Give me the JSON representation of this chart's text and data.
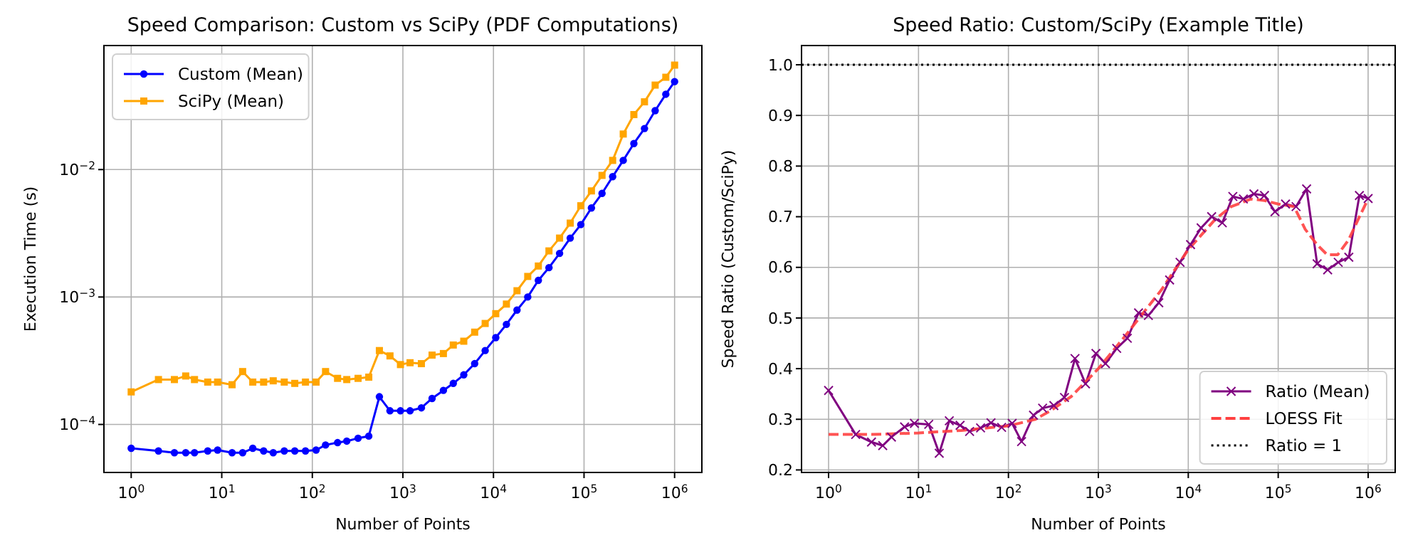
{
  "chart_data": [
    {
      "type": "line",
      "title": "Speed Comparison: Custom vs SciPy (PDF Computations)",
      "xlabel": "Number of Points",
      "ylabel": "Execution Time (s)",
      "x": [
        1,
        2,
        3,
        4,
        5,
        7,
        9,
        13,
        17,
        22,
        29,
        37,
        49,
        64,
        84,
        110,
        140,
        190,
        240,
        320,
        420,
        550,
        720,
        940,
        1200,
        1600,
        2100,
        2800,
        3600,
        4700,
        6200,
        8100,
        10600,
        13900,
        18200,
        23900,
        31300,
        41000,
        53700,
        70400,
        92100,
        120700,
        158000,
        207000,
        271000,
        355000,
        465000,
        610000,
        800000,
        1000000
      ],
      "series": [
        {
          "name": "Custom (Mean)",
          "color": "#0000ff",
          "marker": "circle",
          "values": [
            6.5e-05,
            6.2e-05,
            6e-05,
            6e-05,
            6e-05,
            6.2e-05,
            6.3e-05,
            6e-05,
            6e-05,
            6.5e-05,
            6.2e-05,
            6e-05,
            6.2e-05,
            6.2e-05,
            6.2e-05,
            6.3e-05,
            6.9e-05,
            7.2e-05,
            7.4e-05,
            7.8e-05,
            8.1e-05,
            0.000165,
            0.000128,
            0.000128,
            0.000128,
            0.000135,
            0.00016,
            0.000185,
            0.00021,
            0.000245,
            0.0003,
            0.00038,
            0.00048,
            0.00061,
            0.00079,
            0.001,
            0.00135,
            0.0017,
            0.0022,
            0.0029,
            0.0037,
            0.005,
            0.0065,
            0.0088,
            0.0118,
            0.016,
            0.021,
            0.029,
            0.039,
            0.049
          ]
        },
        {
          "name": "SciPy (Mean)",
          "color": "#ffa500",
          "marker": "square",
          "values": [
            0.00018,
            0.000225,
            0.000225,
            0.00024,
            0.000225,
            0.000215,
            0.000215,
            0.000205,
            0.00026,
            0.000215,
            0.000215,
            0.00022,
            0.000215,
            0.00021,
            0.000215,
            0.000215,
            0.00026,
            0.00023,
            0.000225,
            0.00023,
            0.000235,
            0.00038,
            0.000345,
            0.000295,
            0.000305,
            0.0003,
            0.00035,
            0.00036,
            0.00042,
            0.00045,
            0.00053,
            0.00062,
            0.00074,
            0.00088,
            0.00112,
            0.00145,
            0.00175,
            0.0023,
            0.0029,
            0.0038,
            0.0052,
            0.0068,
            0.009,
            0.0118,
            0.019,
            0.027,
            0.034,
            0.046,
            0.053,
            0.066
          ]
        }
      ],
      "log": "xy",
      "xlim": [
        0.5,
        2000000
      ],
      "ylim": [
        4.2e-05,
        0.094
      ],
      "xticks": [
        {
          "value": 1,
          "label": "10$^{0}$"
        },
        {
          "value": 10,
          "label": "10$^{1}$"
        },
        {
          "value": 100,
          "label": "10$^{2}$"
        },
        {
          "value": 1000,
          "label": "10$^{3}$"
        },
        {
          "value": 10000,
          "label": "10$^{4}$"
        },
        {
          "value": 100000,
          "label": "10$^{5}$"
        },
        {
          "value": 1000000,
          "label": "10$^{6}$"
        }
      ],
      "yticks": [
        {
          "value": 0.0001,
          "label": "10$^{−4}$"
        },
        {
          "value": 0.001,
          "label": "10$^{−3}$"
        },
        {
          "value": 0.01,
          "label": "10$^{−2}$"
        }
      ],
      "grid": true,
      "legend": "top left"
    },
    {
      "type": "line",
      "title": "Speed Ratio: Custom/SciPy (Example Title)",
      "xlabel": "Number of Points",
      "ylabel": "Speed Ratio (Custom/SciPy)",
      "x": [
        1,
        2,
        3,
        4,
        5,
        7,
        9,
        13,
        17,
        22,
        29,
        37,
        49,
        64,
        84,
        110,
        140,
        190,
        240,
        320,
        420,
        550,
        720,
        940,
        1200,
        1600,
        2100,
        2800,
        3600,
        4700,
        6200,
        8100,
        10600,
        13900,
        18200,
        23900,
        31300,
        41000,
        53700,
        70400,
        92100,
        120700,
        158000,
        207000,
        271000,
        355000,
        465000,
        610000,
        800000,
        1000000
      ],
      "series": [
        {
          "name": "Ratio (Mean)",
          "color": "#800080",
          "marker": "cross",
          "values": [
            0.357,
            0.27,
            0.255,
            0.248,
            0.265,
            0.285,
            0.292,
            0.29,
            0.233,
            0.297,
            0.288,
            0.276,
            0.283,
            0.293,
            0.284,
            0.292,
            0.256,
            0.308,
            0.322,
            0.327,
            0.343,
            0.42,
            0.37,
            0.43,
            0.41,
            0.44,
            0.46,
            0.51,
            0.505,
            0.53,
            0.575,
            0.61,
            0.645,
            0.678,
            0.7,
            0.688,
            0.74,
            0.735,
            0.745,
            0.742,
            0.71,
            0.725,
            0.72,
            0.755,
            0.607,
            0.595,
            0.61,
            0.62,
            0.742,
            0.736
          ]
        },
        {
          "name": "LOESS Fit",
          "color": "#ff4040",
          "line_style": "dashed",
          "x": [
            1,
            3,
            10,
            30,
            100,
            200,
            300,
            500,
            1000,
            2000,
            3000,
            5000,
            10000,
            20000,
            30000,
            50000,
            70000,
            100000,
            150000,
            200000,
            270000,
            350000,
            460000,
            610000,
            800000,
            1000000
          ],
          "values": [
            0.27,
            0.27,
            0.273,
            0.278,
            0.287,
            0.3,
            0.318,
            0.345,
            0.4,
            0.465,
            0.505,
            0.555,
            0.635,
            0.695,
            0.72,
            0.735,
            0.732,
            0.725,
            0.72,
            0.675,
            0.645,
            0.625,
            0.625,
            0.655,
            0.7,
            0.735
          ]
        }
      ],
      "ref_lines": [
        {
          "axis": "y",
          "value": 1,
          "label": "Ratio = 1",
          "color": "#000000",
          "line_style": "dotted"
        }
      ],
      "log": "x",
      "xlim": [
        0.5,
        2000000
      ],
      "ylim": [
        0.195,
        1.038
      ],
      "xticks": [
        {
          "value": 1,
          "label": "10$^{0}$"
        },
        {
          "value": 10,
          "label": "10$^{1}$"
        },
        {
          "value": 100,
          "label": "10$^{2}$"
        },
        {
          "value": 1000,
          "label": "10$^{3}$"
        },
        {
          "value": 10000,
          "label": "10$^{4}$"
        },
        {
          "value": 100000,
          "label": "10$^{5}$"
        },
        {
          "value": 1000000,
          "label": "10$^{6}$"
        }
      ],
      "yticks": [
        {
          "value": 0.2,
          "label": "0.2"
        },
        {
          "value": 0.3,
          "label": "0.3"
        },
        {
          "value": 0.4,
          "label": "0.4"
        },
        {
          "value": 0.5,
          "label": "0.5"
        },
        {
          "value": 0.6,
          "label": "0.6"
        },
        {
          "value": 0.7,
          "label": "0.7"
        },
        {
          "value": 0.8,
          "label": "0.8"
        },
        {
          "value": 0.9,
          "label": "0.9"
        },
        {
          "value": 1.0,
          "label": "1.0"
        }
      ],
      "grid": true,
      "legend": "bottom right"
    }
  ]
}
